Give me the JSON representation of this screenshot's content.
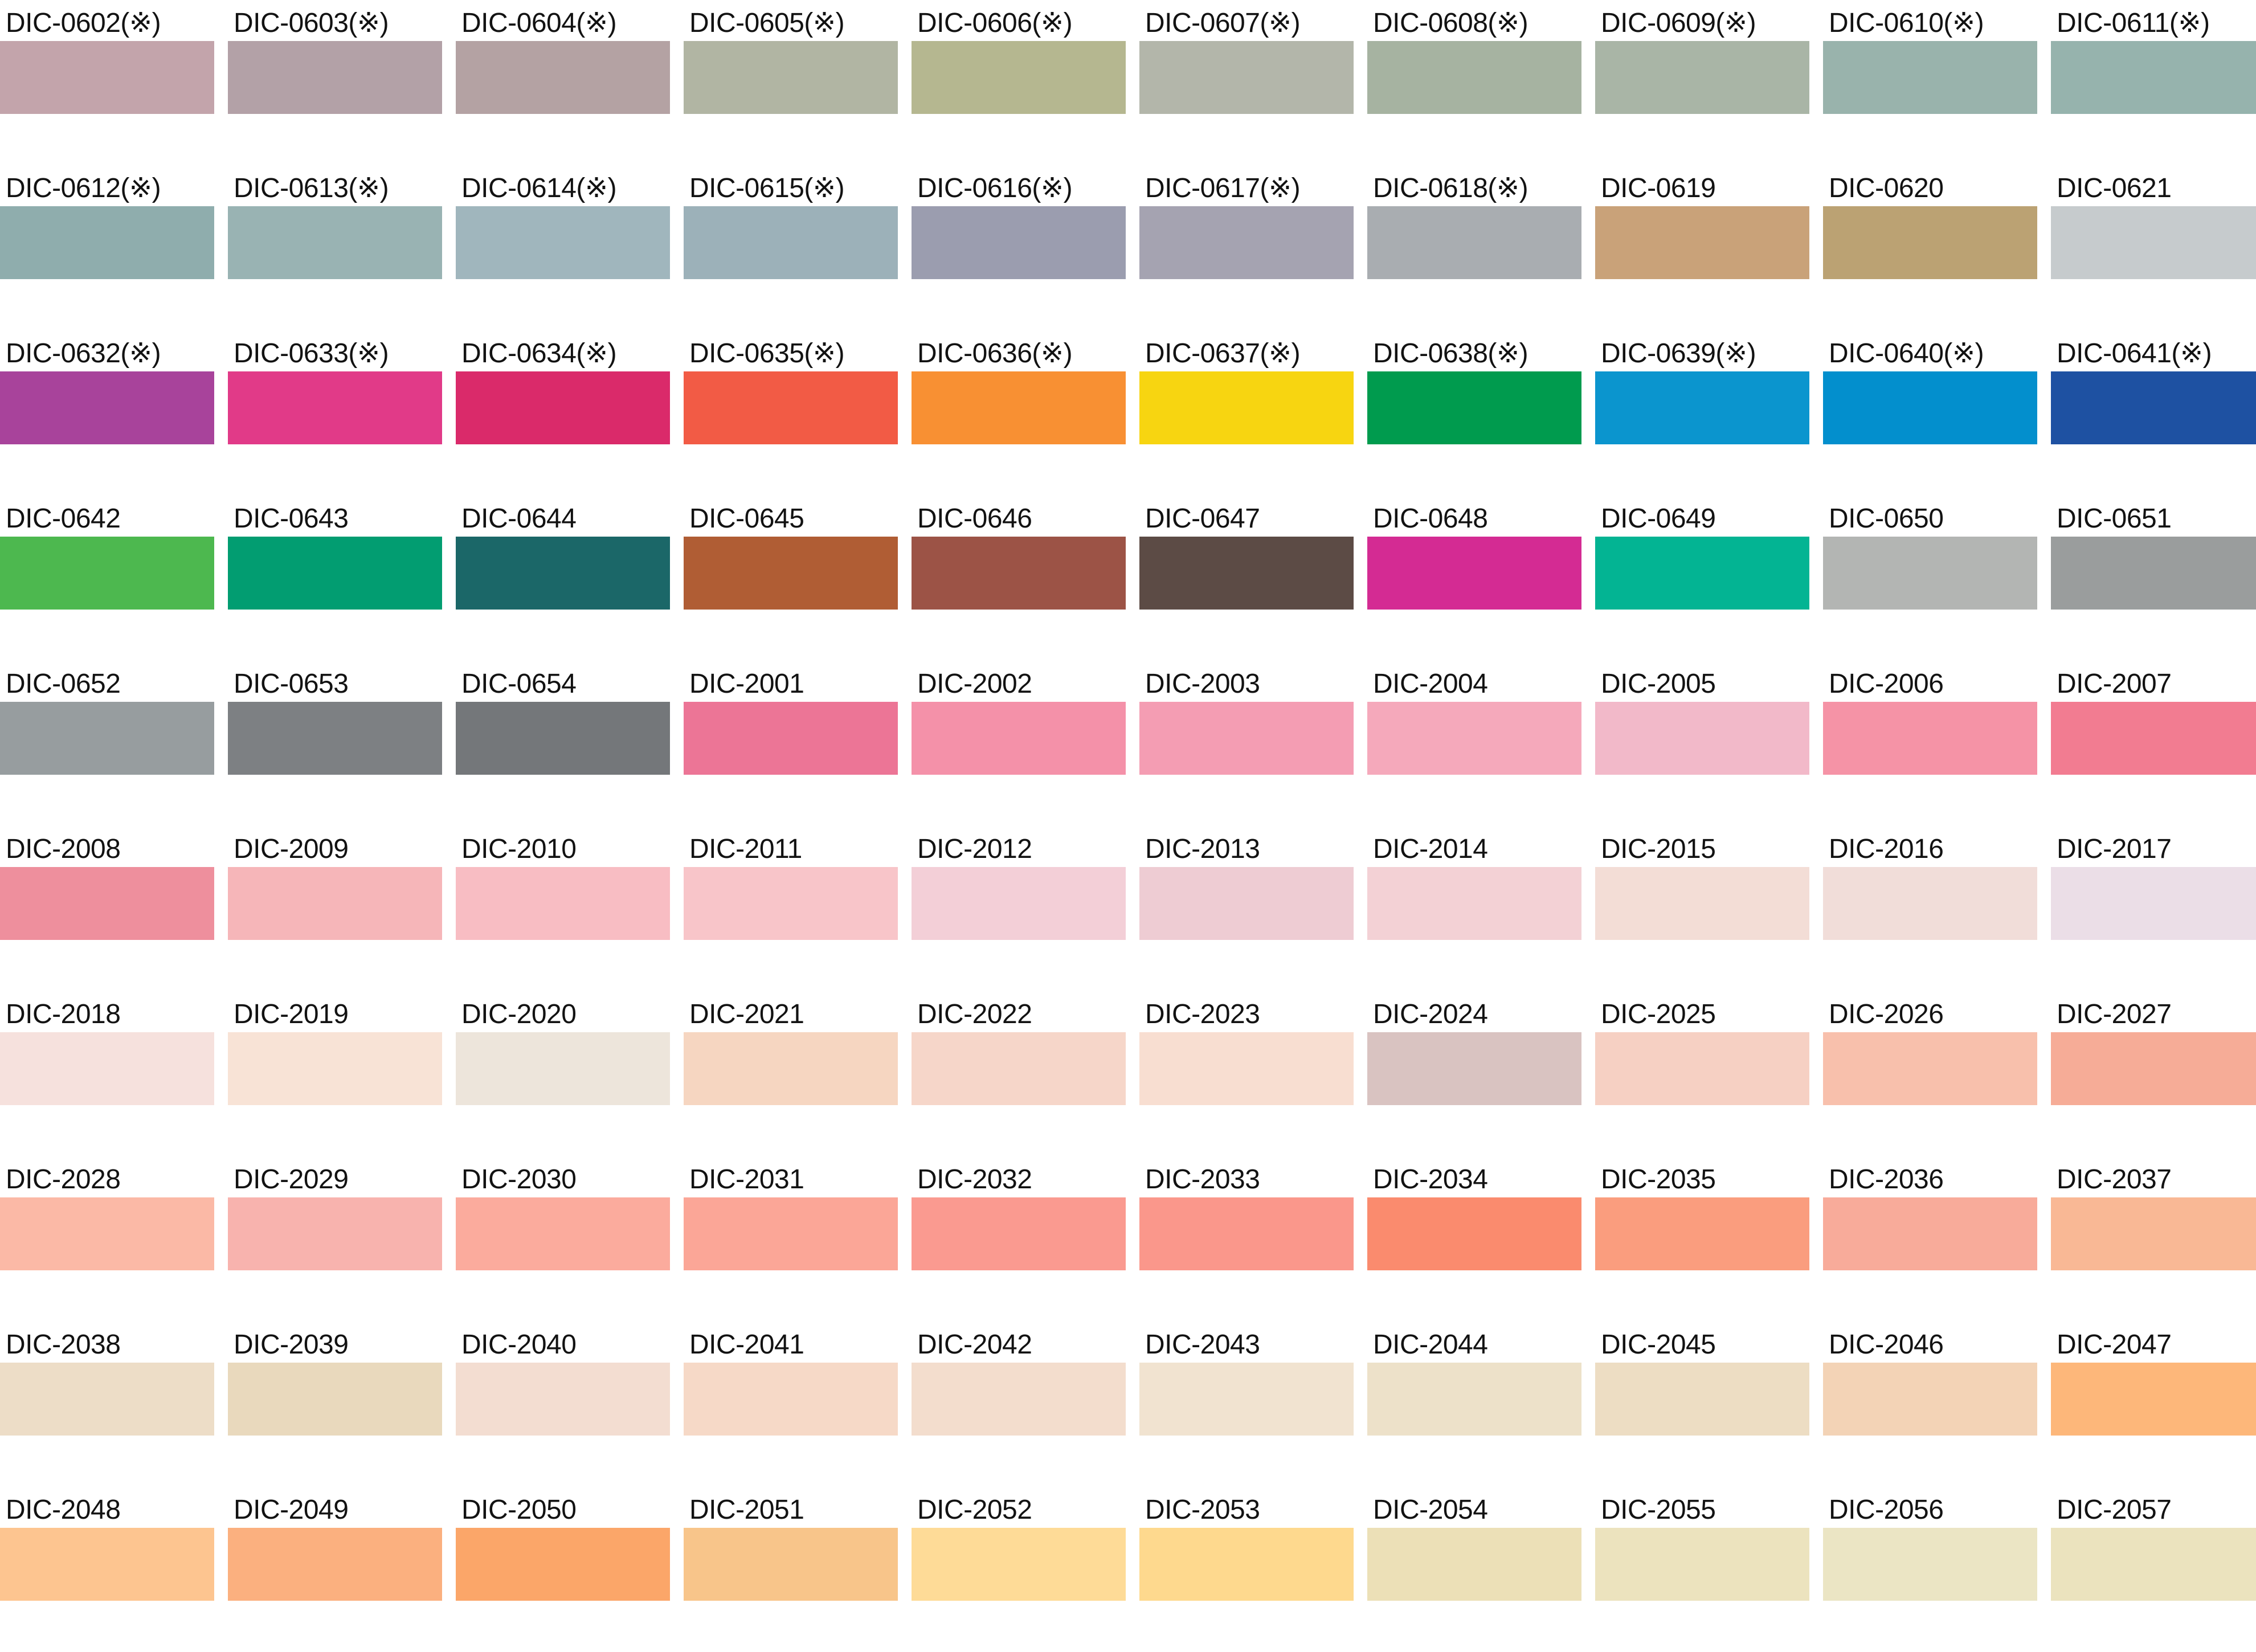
{
  "page": {
    "background": "#ffffff",
    "text_color": "#121212"
  },
  "grid": {
    "columns": 10,
    "rows": 10
  },
  "swatches": [
    {
      "label": "DIC-0602(※)",
      "color": "#c3a4ab"
    },
    {
      "label": "DIC-0603(※)",
      "color": "#b3a1a7"
    },
    {
      "label": "DIC-0604(※)",
      "color": "#b4a2a3"
    },
    {
      "label": "DIC-0605(※)",
      "color": "#b1b5a3"
    },
    {
      "label": "DIC-0606(※)",
      "color": "#b5b790"
    },
    {
      "label": "DIC-0607(※)",
      "color": "#b3b6aa"
    },
    {
      "label": "DIC-0608(※)",
      "color": "#a6b3a1"
    },
    {
      "label": "DIC-0609(※)",
      "color": "#a9b5a6"
    },
    {
      "label": "DIC-0610(※)",
      "color": "#99b3ac"
    },
    {
      "label": "DIC-0611(※)",
      "color": "#96b3ad"
    },
    {
      "label": "DIC-0612(※)",
      "color": "#8fadad"
    },
    {
      "label": "DIC-0613(※)",
      "color": "#99b3b3"
    },
    {
      "label": "DIC-0614(※)",
      "color": "#a0b6bd"
    },
    {
      "label": "DIC-0615(※)",
      "color": "#9cb1b9"
    },
    {
      "label": "DIC-0616(※)",
      "color": "#9b9daf"
    },
    {
      "label": "DIC-0617(※)",
      "color": "#a5a3b1"
    },
    {
      "label": "DIC-0618(※)",
      "color": "#a9adb1"
    },
    {
      "label": "DIC-0619",
      "color": "#c9a279"
    },
    {
      "label": "DIC-0620",
      "color": "#bba273"
    },
    {
      "label": "DIC-0621",
      "color": "#c6cbcd"
    },
    {
      "label": "DIC-0632(※)",
      "color": "#a8439b"
    },
    {
      "label": "DIC-0633(※)",
      "color": "#e13a88"
    },
    {
      "label": "DIC-0634(※)",
      "color": "#da2a6a"
    },
    {
      "label": "DIC-0635(※)",
      "color": "#f25b45"
    },
    {
      "label": "DIC-0636(※)",
      "color": "#f89033"
    },
    {
      "label": "DIC-0637(※)",
      "color": "#f7d511"
    },
    {
      "label": "DIC-0638(※)",
      "color": "#009b4e"
    },
    {
      "label": "DIC-0639(※)",
      "color": "#0b95ce"
    },
    {
      "label": "DIC-0640(※)",
      "color": "#038fcd"
    },
    {
      "label": "DIC-0641(※)",
      "color": "#1e51a2"
    },
    {
      "label": "DIC-0642",
      "color": "#4db84f"
    },
    {
      "label": "DIC-0643",
      "color": "#029d71"
    },
    {
      "label": "DIC-0644",
      "color": "#1b6768"
    },
    {
      "label": "DIC-0645",
      "color": "#b05d34"
    },
    {
      "label": "DIC-0646",
      "color": "#9c5346"
    },
    {
      "label": "DIC-0647",
      "color": "#5c4b45"
    },
    {
      "label": "DIC-0648",
      "color": "#d42b93"
    },
    {
      "label": "DIC-0649",
      "color": "#03b493"
    },
    {
      "label": "DIC-0650",
      "color": "#b3b5b3"
    },
    {
      "label": "DIC-0651",
      "color": "#9a9d9d"
    },
    {
      "label": "DIC-0652",
      "color": "#979d9f"
    },
    {
      "label": "DIC-0653",
      "color": "#7d8083"
    },
    {
      "label": "DIC-0654",
      "color": "#74777a"
    },
    {
      "label": "DIC-2001",
      "color": "#ec7596"
    },
    {
      "label": "DIC-2002",
      "color": "#f491a9"
    },
    {
      "label": "DIC-2003",
      "color": "#f49db3"
    },
    {
      "label": "DIC-2004",
      "color": "#f5a9bb"
    },
    {
      "label": "DIC-2005",
      "color": "#f2b9c9"
    },
    {
      "label": "DIC-2006",
      "color": "#f593a6"
    },
    {
      "label": "DIC-2007",
      "color": "#f27c91"
    },
    {
      "label": "DIC-2008",
      "color": "#ee8f9d"
    },
    {
      "label": "DIC-2009",
      "color": "#f6b6b9"
    },
    {
      "label": "DIC-2010",
      "color": "#f8bdc3"
    },
    {
      "label": "DIC-2011",
      "color": "#f8c5c9"
    },
    {
      "label": "DIC-2012",
      "color": "#f3cfd7"
    },
    {
      "label": "DIC-2013",
      "color": "#eeccd3"
    },
    {
      "label": "DIC-2014",
      "color": "#f3d1d5"
    },
    {
      "label": "DIC-2015",
      "color": "#f3ddd6"
    },
    {
      "label": "DIC-2016",
      "color": "#f1ddd9"
    },
    {
      "label": "DIC-2017",
      "color": "#ebdee7"
    },
    {
      "label": "DIC-2018",
      "color": "#f6e1dd"
    },
    {
      "label": "DIC-2019",
      "color": "#f8e3d6"
    },
    {
      "label": "DIC-2020",
      "color": "#ede5db"
    },
    {
      "label": "DIC-2021",
      "color": "#f6d6c1"
    },
    {
      "label": "DIC-2022",
      "color": "#f6d6c9"
    },
    {
      "label": "DIC-2023",
      "color": "#f8ded1"
    },
    {
      "label": "DIC-2024",
      "color": "#d9c3c1"
    },
    {
      "label": "DIC-2025",
      "color": "#f6d0c3"
    },
    {
      "label": "DIC-2026",
      "color": "#f8c0ac"
    },
    {
      "label": "DIC-2027",
      "color": "#f6ac97"
    },
    {
      "label": "DIC-2028",
      "color": "#fbb9a6"
    },
    {
      "label": "DIC-2029",
      "color": "#f8b3ae"
    },
    {
      "label": "DIC-2030",
      "color": "#fbab9d"
    },
    {
      "label": "DIC-2031",
      "color": "#fba697"
    },
    {
      "label": "DIC-2032",
      "color": "#fa9a90"
    },
    {
      "label": "DIC-2033",
      "color": "#fa978b"
    },
    {
      "label": "DIC-2034",
      "color": "#fa8b6e"
    },
    {
      "label": "DIC-2035",
      "color": "#fa9d7e"
    },
    {
      "label": "DIC-2036",
      "color": "#f8ab9a"
    },
    {
      "label": "DIC-2037",
      "color": "#f9b895"
    },
    {
      "label": "DIC-2038",
      "color": "#edddc7"
    },
    {
      "label": "DIC-2039",
      "color": "#e9d9bd"
    },
    {
      "label": "DIC-2040",
      "color": "#f3ddd1"
    },
    {
      "label": "DIC-2041",
      "color": "#f6d9c7"
    },
    {
      "label": "DIC-2042",
      "color": "#f3ddcd"
    },
    {
      "label": "DIC-2043",
      "color": "#f1e3d0"
    },
    {
      "label": "DIC-2044",
      "color": "#ede1c9"
    },
    {
      "label": "DIC-2045",
      "color": "#edddc3"
    },
    {
      "label": "DIC-2046",
      "color": "#f3d3b6"
    },
    {
      "label": "DIC-2047",
      "color": "#fdb77a"
    },
    {
      "label": "DIC-2048",
      "color": "#fdc590"
    },
    {
      "label": "DIC-2049",
      "color": "#fbb07f"
    },
    {
      "label": "DIC-2050",
      "color": "#fba669"
    },
    {
      "label": "DIC-2051",
      "color": "#f8c58a"
    },
    {
      "label": "DIC-2052",
      "color": "#fedb97"
    },
    {
      "label": "DIC-2053",
      "color": "#fed98e"
    },
    {
      "label": "DIC-2054",
      "color": "#ece0b7"
    },
    {
      "label": "DIC-2055",
      "color": "#ece3be"
    },
    {
      "label": "DIC-2056",
      "color": "#ebe5c4"
    },
    {
      "label": "DIC-2057",
      "color": "#ebe3be"
    }
  ]
}
